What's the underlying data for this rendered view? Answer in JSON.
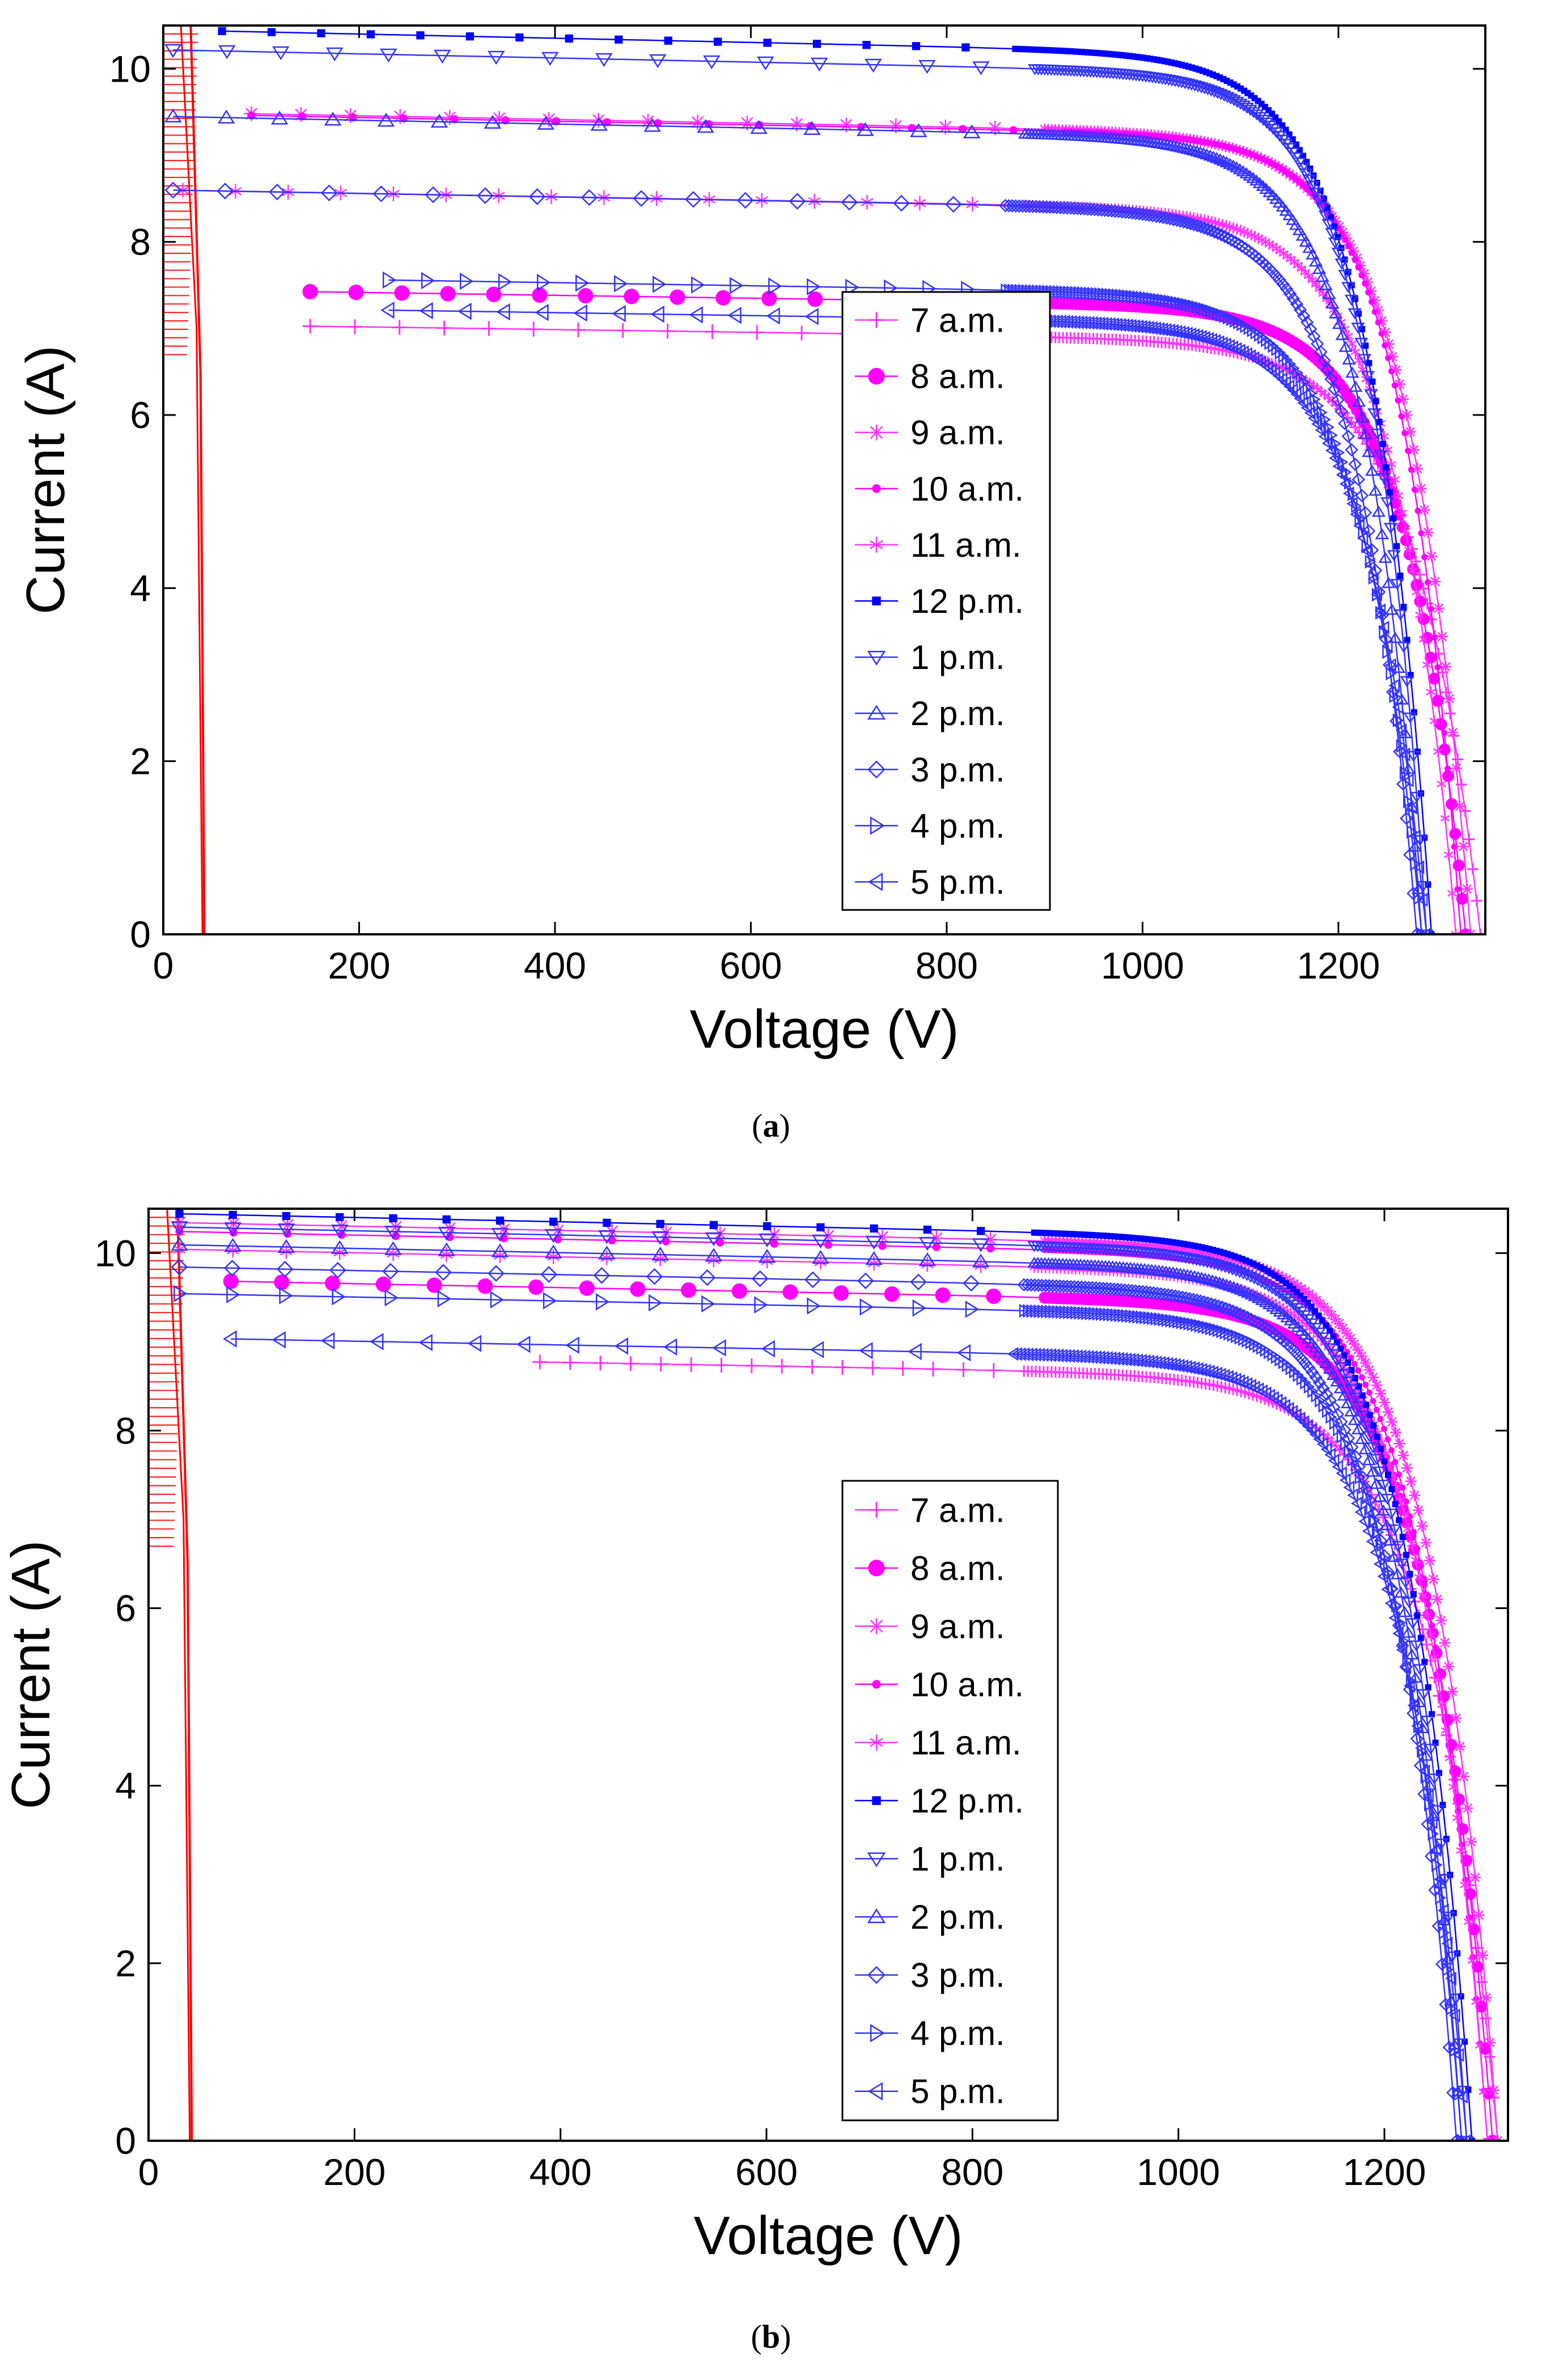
{
  "chart_data": [
    {
      "type": "line",
      "panel": "a",
      "caption": "a",
      "xlabel": "Voltage (V)",
      "ylabel": "Current (A)",
      "xlim": [
        0,
        1350
      ],
      "ylim": [
        0,
        10.5
      ],
      "xticks": [
        "0",
        "200",
        "400",
        "600",
        "800",
        "1000",
        "1200"
      ],
      "yticks": [
        "0",
        "2",
        "4",
        "6",
        "8",
        "10"
      ],
      "legend_position": "center-right",
      "series": [
        {
          "name": "7 a.m.",
          "color": "#ff33ff",
          "marker": "plus",
          "isc": 7.05,
          "start_v": 150,
          "knee_v": 880,
          "voc": 1345
        },
        {
          "name": "8 a.m.",
          "color": "#ff00ff",
          "marker": "circle",
          "isc": 7.45,
          "start_v": 150,
          "knee_v": 900,
          "voc": 1330
        },
        {
          "name": "9 a.m.",
          "color": "#ff33ff",
          "marker": "star",
          "isc": 9.5,
          "start_v": 90,
          "knee_v": 900,
          "voc": 1335
        },
        {
          "name": "10 a.m.",
          "color": "#ff00ff",
          "marker": "dot",
          "isc": 9.48,
          "start_v": 90,
          "knee_v": 920,
          "voc": 1325
        },
        {
          "name": "11 a.m.",
          "color": "#ff33ff",
          "marker": "asterisk",
          "isc": 8.6,
          "start_v": 20,
          "knee_v": 880,
          "voc": 1320
        },
        {
          "name": "12 p.m.",
          "color": "#0000ff",
          "marker": "square",
          "isc": 10.45,
          "start_v": 60,
          "knee_v": 870,
          "voc": 1295
        },
        {
          "name": "1 p.m.",
          "color": "#3333ff",
          "marker": "tri-down",
          "isc": 10.22,
          "start_v": 10,
          "knee_v": 890,
          "voc": 1290
        },
        {
          "name": "2 p.m.",
          "color": "#3333ff",
          "marker": "tri-up",
          "isc": 9.45,
          "start_v": 10,
          "knee_v": 880,
          "voc": 1285
        },
        {
          "name": "3 p.m.",
          "color": "#3333ff",
          "marker": "diamond",
          "isc": 8.6,
          "start_v": 10,
          "knee_v": 860,
          "voc": 1280
        },
        {
          "name": "4 p.m.",
          "color": "#3333ff",
          "marker": "tri-right",
          "isc": 7.6,
          "start_v": 230,
          "knee_v": 860,
          "voc": 1285
        },
        {
          "name": "5 p.m.",
          "color": "#3333ff",
          "marker": "tri-left",
          "isc": 7.25,
          "start_v": 230,
          "knee_v": 860,
          "voc": 1290
        }
      ]
    },
    {
      "type": "line",
      "panel": "b",
      "caption": "b",
      "xlabel": "Voltage (V)",
      "ylabel": "Current (A)",
      "xlim": [
        0,
        1320
      ],
      "ylim": [
        0,
        10.5
      ],
      "xticks": [
        "0",
        "200",
        "400",
        "600",
        "800",
        "1000",
        "1200"
      ],
      "yticks": [
        "0",
        "2",
        "4",
        "6",
        "8",
        "10"
      ],
      "legend_position": "center-right",
      "series": [
        {
          "name": "7 a.m.",
          "color": "#ff33ff",
          "marker": "plus",
          "isc": 8.85,
          "start_v": 380,
          "knee_v": 850,
          "voc": 1310
        },
        {
          "name": "8 a.m.",
          "color": "#ff00ff",
          "marker": "circle",
          "isc": 9.7,
          "start_v": 80,
          "knee_v": 870,
          "voc": 1305
        },
        {
          "name": "9 a.m.",
          "color": "#ff33ff",
          "marker": "star",
          "isc": 10.35,
          "start_v": 30,
          "knee_v": 870,
          "voc": 1310
        },
        {
          "name": "10 a.m.",
          "color": "#ff00ff",
          "marker": "dot",
          "isc": 10.25,
          "start_v": 30,
          "knee_v": 870,
          "voc": 1300
        },
        {
          "name": "11 a.m.",
          "color": "#ff33ff",
          "marker": "asterisk",
          "isc": 10.05,
          "start_v": 30,
          "knee_v": 860,
          "voc": 1300
        },
        {
          "name": "12 p.m.",
          "color": "#0000ff",
          "marker": "square",
          "isc": 10.45,
          "start_v": 30,
          "knee_v": 860,
          "voc": 1285
        },
        {
          "name": "1 p.m.",
          "color": "#3333ff",
          "marker": "tri-down",
          "isc": 10.3,
          "start_v": 30,
          "knee_v": 860,
          "voc": 1280
        },
        {
          "name": "2 p.m.",
          "color": "#3333ff",
          "marker": "tri-up",
          "isc": 10.1,
          "start_v": 30,
          "knee_v": 860,
          "voc": 1275
        },
        {
          "name": "3 p.m.",
          "color": "#3333ff",
          "marker": "diamond",
          "isc": 9.85,
          "start_v": 30,
          "knee_v": 850,
          "voc": 1270
        },
        {
          "name": "4 p.m.",
          "color": "#3333ff",
          "marker": "tri-right",
          "isc": 9.55,
          "start_v": 30,
          "knee_v": 850,
          "voc": 1275
        },
        {
          "name": "5 p.m.",
          "color": "#3333ff",
          "marker": "tri-left",
          "isc": 9.05,
          "start_v": 80,
          "knee_v": 840,
          "voc": 1280
        }
      ]
    }
  ]
}
